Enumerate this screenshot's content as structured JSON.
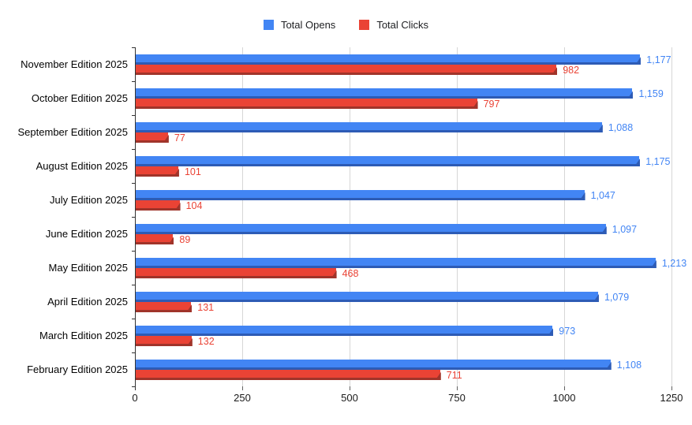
{
  "chart_data": {
    "type": "bar",
    "orientation": "horizontal",
    "title": "",
    "xlabel": "",
    "ylabel": "",
    "xlim": [
      0,
      1250
    ],
    "x_ticks": [
      0,
      250,
      500,
      750,
      1000,
      1250
    ],
    "x_tick_labels": [
      "0",
      "250",
      "500",
      "750",
      "1000",
      "1250"
    ],
    "grid": true,
    "legend_position": "top",
    "categories": [
      "November Edition 2025",
      "October Edition 2025",
      "September Edition 2025",
      "August Edition 2025",
      "July Edition 2025",
      "June Edition 2025",
      "May Edition 2025",
      "April Edition 2025",
      "March Edition 2025",
      "February Edition 2025"
    ],
    "series": [
      {
        "name": "Total Opens",
        "color": "#4285F4",
        "edge_color": "#2d5bb5",
        "label_color": "#4285F4",
        "values": [
          1177,
          1159,
          1088,
          1175,
          1047,
          1097,
          1213,
          1079,
          973,
          1108
        ],
        "labels": [
          "1,177",
          "1,159",
          "1,088",
          "1,175",
          "1,047",
          "1,097",
          "1,213",
          "1,079",
          "973",
          "1,108"
        ]
      },
      {
        "name": "Total Clicks",
        "color": "#EA4335",
        "edge_color": "#a0342a",
        "label_color": "#EA4335",
        "values": [
          982,
          797,
          77,
          101,
          104,
          89,
          468,
          131,
          132,
          711
        ],
        "labels": [
          "982",
          "797",
          "77",
          "101",
          "104",
          "89",
          "468",
          "131",
          "132",
          "711"
        ]
      }
    ],
    "colors": {
      "gridline": "#d6d6d6",
      "axis_line": "#333333",
      "axis_text": "#1a1a1a",
      "category_text": "#050505",
      "background": "#ffffff"
    }
  }
}
